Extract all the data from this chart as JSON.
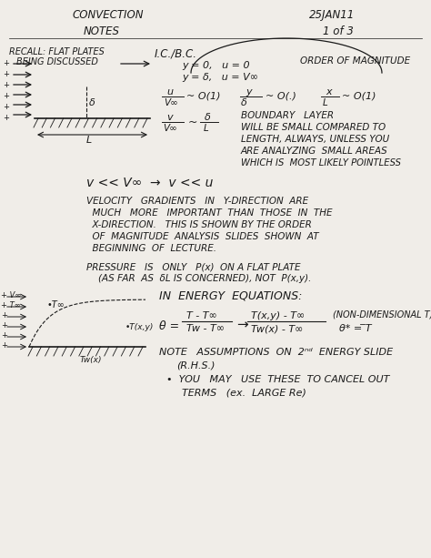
{
  "bg_color": "#f0ede8",
  "text_color": "#1a1a1a",
  "title_left": "CONVECTION",
  "title_right": "25JAN11",
  "subtitle_left": "NOTES",
  "subtitle_right": "1 of 3",
  "fig_width": 4.74,
  "fig_height": 6.13,
  "dpi": 100
}
